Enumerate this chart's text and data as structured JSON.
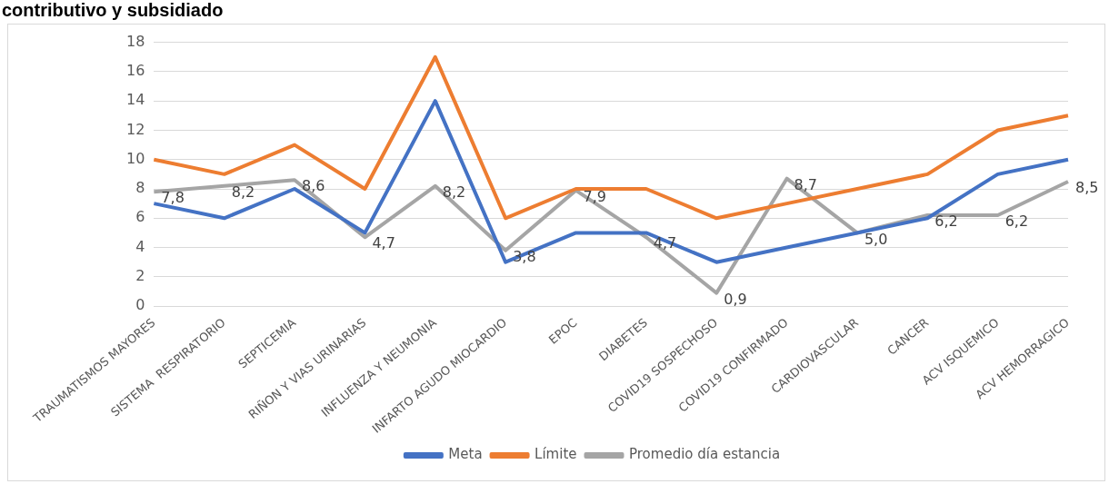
{
  "chart_data": {
    "type": "line",
    "title": "contributivo y subsidiado",
    "categories": [
      "TRAUMATISMOS MAYORES",
      "SISTEMA  RESPIRATORIO",
      "SEPTICEMIA",
      "RIÑON Y VIAS URINARIAS",
      "INFLUENZA Y NEUMONIA",
      "INFARTO AGUDO MIOCARDIO",
      "EPOC",
      "DIABETES",
      "COVID19 SOSPECHOSO",
      "COVID19 CONFIRMADO",
      "CARDIOVASCULAR",
      "CANCER",
      "ACV ISQUEMICO",
      "ACV HEMORRAGICO"
    ],
    "series": [
      {
        "name": "Meta",
        "color": "#4472c4",
        "values": [
          7,
          6,
          8,
          5,
          14,
          3,
          5,
          5,
          3,
          4,
          5,
          6,
          9,
          10
        ]
      },
      {
        "name": "Límite",
        "color": "#ed7d31",
        "values": [
          10,
          9,
          11,
          8,
          17,
          6,
          8,
          8,
          6,
          7,
          8,
          9,
          12,
          13
        ]
      },
      {
        "name": "Promedio día estancia",
        "color": "#a5a5a5",
        "values": [
          7.8,
          8.2,
          8.6,
          4.7,
          8.2,
          3.8,
          7.9,
          4.7,
          0.9,
          8.7,
          5.0,
          6.2,
          6.2,
          8.5
        ],
        "value_labels": [
          "7,8",
          "8,2",
          "8,6",
          "4,7",
          "8,2",
          "3,8",
          "7,9",
          "4,7",
          "0,9",
          "8,7",
          "5,0",
          "6,2",
          "6,2",
          "8,5"
        ]
      }
    ],
    "ylim": [
      0,
      18
    ],
    "yticks": [
      0,
      2,
      4,
      6,
      8,
      10,
      12,
      14,
      16,
      18
    ],
    "grid": "y",
    "legend": "bottom",
    "marker": "none",
    "line_style": "solid"
  }
}
